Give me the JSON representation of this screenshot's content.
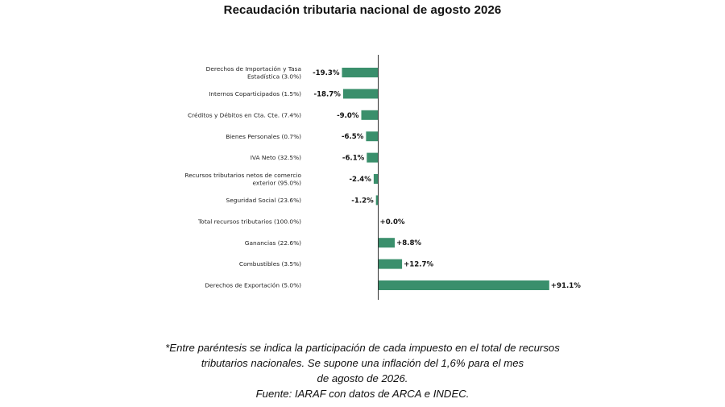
{
  "title": "Recaudación tributaria nacional de agosto 2026",
  "chart_data": {
    "type": "bar",
    "orientation": "horizontal",
    "title": "Recaudación tributaria nacional de agosto 2026",
    "categories": [
      [
        "Derechos de Importación y Tasa",
        "Estadística (3.0%)"
      ],
      [
        "Internos Coparticipados (1.5%)"
      ],
      [
        "Créditos y Débitos en Cta. Cte. (7.4%)"
      ],
      [
        "Bienes Personales (0.7%)"
      ],
      [
        "IVA Neto (32.5%)"
      ],
      [
        "Recursos tributarios netos de comercio",
        "exterior (95.0%)"
      ],
      [
        "Seguridad Social (23.6%)"
      ],
      [
        "Total recursos tributarios (100.0%)"
      ],
      [
        "Ganancias (22.6%)"
      ],
      [
        "Combustibles (3.5%)"
      ],
      [
        "Derechos de Exportación (5.0%)"
      ]
    ],
    "values": [
      -19.3,
      -18.7,
      -9.0,
      -6.5,
      -6.1,
      -2.4,
      -1.2,
      0.0,
      8.8,
      12.7,
      91.1
    ],
    "value_labels": [
      "-19.3%",
      "-18.7%",
      "-9.0%",
      "-6.5%",
      "-6.1%",
      "-2.4%",
      "-1.2%",
      "+0.0%",
      "+8.8%",
      "+12.7%",
      "+91.1%"
    ],
    "bar_color": "#3a8f6c",
    "axis_line": "zero line only",
    "grid": false,
    "legend": "none"
  },
  "footnote": {
    "lines": [
      "*Entre paréntesis se indica la participación de cada impuesto en el total de recursos",
      "tributarios nacionales. Se supone una inflación del 1,6% para el mes",
      "de agosto de 2026.",
      "Fuente: IARAF con datos de ARCA e INDEC."
    ]
  }
}
